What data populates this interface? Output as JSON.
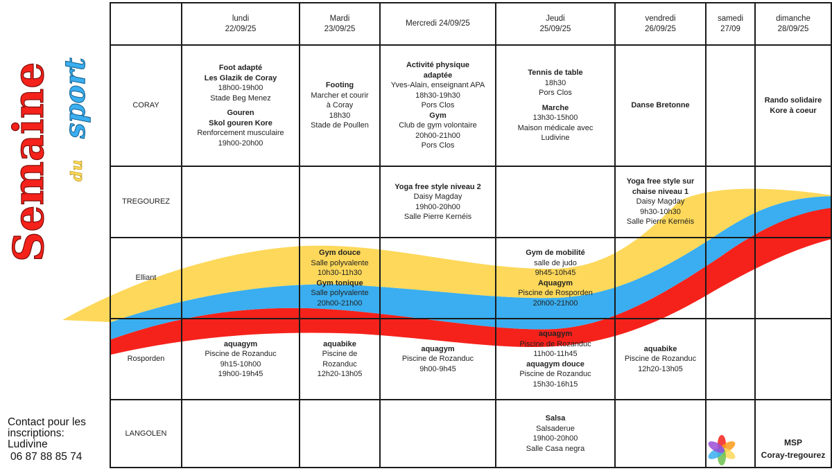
{
  "title": {
    "word1": "Semaine",
    "word2": "du",
    "word3": "sport"
  },
  "colors": {
    "yellow": "#fdd85a",
    "blue": "#3aaef0",
    "red": "#f5221b",
    "grid": "#1a1a1a"
  },
  "days": [
    {
      "name": "lundi",
      "date": "22/09/25"
    },
    {
      "name": "Mardi",
      "date": "23/09/25"
    },
    {
      "name": "Mercredi 24/09/25",
      "date": ""
    },
    {
      "name": "Jeudi",
      "date": "25/09/25"
    },
    {
      "name": "vendredi",
      "date": "26/09/25"
    },
    {
      "name": "samedi",
      "date": "27/09"
    },
    {
      "name": "dimanche",
      "date": "28/09/25"
    }
  ],
  "towns": [
    "CORAY",
    "TREGOUREZ",
    "Elliant",
    "Rosporden",
    "LANGOLEN"
  ],
  "coray": {
    "lundi": [
      "Foot adapté",
      "Les Glazik de Coray",
      "18h00-19h00",
      "Stade Beg Menez",
      "Gouren",
      "Skol gouren Kore",
      "Renforcement musculaire",
      "19h00-20h00"
    ],
    "mardi": [
      "Footing",
      "Marcher et courir",
      "à Coray",
      "18h30",
      "Stade de Poullen"
    ],
    "mercredi": [
      "Activité physique",
      "adaptée",
      "Yves-Alain, enseignant APA",
      "18h30-19h30",
      "Pors Clos",
      "Gym",
      "Club de gym volontaire",
      "20h00-21h00",
      "Pors Clos"
    ],
    "jeudi": [
      "Tennis de table",
      "18h30",
      "Pors Clos",
      "Marche",
      "13h30-15h00",
      "Maison médicale avec",
      "Ludivine"
    ],
    "vendredi": [
      "Danse Bretonne"
    ],
    "dimanche": [
      "Rando solidaire",
      "Kore à coeur"
    ]
  },
  "tregourez": {
    "mercredi": [
      "Yoga free style niveau 2",
      "Daisy Magday",
      "19h00-20h00",
      "Salle Pierre Kernéis"
    ],
    "vendredi": [
      "Yoga free style sur",
      "chaise niveau 1",
      "Daisy Magday",
      "9h30-10h30",
      "Salle Pierre Kernéis"
    ]
  },
  "elliant": {
    "mardi": [
      "Gym douce",
      "Salle polyvalente",
      "10h30-11h30",
      "Gym tonique",
      "Salle polyvalente",
      "20h00-21h00"
    ],
    "jeudi": [
      "Gym de mobilité",
      "salle de judo",
      "9h45-10h45",
      "Aquagym",
      "Piscine de Rosporden",
      "20h00-21h00"
    ]
  },
  "rosporden": {
    "lundi": [
      "aquagym",
      "Piscine de Rozanduc",
      "9h15-10h00",
      "19h00-19h45"
    ],
    "mardi": [
      "aquabike",
      "Piscine de",
      "Rozanduc",
      "12h20-13h05"
    ],
    "mercredi": [
      "aquagym",
      "Piscine de Rozanduc",
      "9h00-9h45"
    ],
    "jeudi": [
      "aquagym",
      "Piscine de Rozanduc",
      "11h00-11h45",
      "aquagym douce",
      "Piscine de Rozanduc",
      "15h30-16h15"
    ],
    "vendredi": [
      "aquabike",
      "Piscine de Rozanduc",
      "12h20-13h05"
    ]
  },
  "langolen": {
    "jeudi": [
      "Salsa",
      "Salsaderue",
      "19h00-20h00",
      "Salle Casa negra"
    ]
  },
  "contact": {
    "line1": "Contact pour les",
    "line2": "inscriptions:",
    "line3": "Ludivine",
    "phone": "06 87 88 85 74"
  },
  "msp": {
    "line1": "MSP",
    "line2": "Coray-tregourez"
  },
  "icons": {
    "logo": "colorful-hands-logo"
  }
}
